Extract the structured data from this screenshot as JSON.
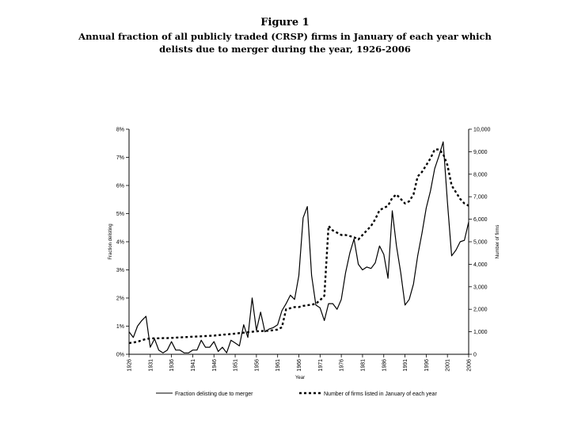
{
  "figure": {
    "label": "Figure 1",
    "caption_line1": "Annual fraction of all publicly traded (CRSP) firms in January of each year which",
    "caption_line2": "delists due to merger during the year, 1926-2006"
  },
  "chart_data": {
    "type": "line",
    "title": "Annual fraction of all publicly traded (CRSP) firms in January of each year which delists due to merger during the year, 1926-2006",
    "xlabel": "Year",
    "ylabel_left": "Fraction delisting",
    "ylabel_right": "Number of firms",
    "xlim": [
      1926,
      2006
    ],
    "ylim_left": [
      0,
      8
    ],
    "ylim_right": [
      0,
      10000
    ],
    "x_ticks": [
      "1926",
      "1931",
      "1936",
      "1941",
      "1946",
      "1951",
      "1956",
      "1961",
      "1966",
      "1971",
      "1976",
      "1981",
      "1986",
      "1991",
      "1996",
      "2001",
      "2006"
    ],
    "y_ticks_left": [
      "0%",
      "1%",
      "2%",
      "3%",
      "4%",
      "5%",
      "6%",
      "7%",
      "8%"
    ],
    "y_ticks_right": [
      "0",
      "1,000",
      "2,000",
      "3,000",
      "4,000",
      "5,000",
      "6,000",
      "7,000",
      "8,000",
      "9,000",
      "10,000"
    ],
    "legend_position": "bottom",
    "series": [
      {
        "name": "Fraction delisting due to merger",
        "axis": "left",
        "style": "solid",
        "x": [
          1926,
          1927,
          1928,
          1929,
          1930,
          1931,
          1932,
          1933,
          1934,
          1935,
          1936,
          1937,
          1938,
          1939,
          1940,
          1941,
          1942,
          1943,
          1944,
          1945,
          1946,
          1947,
          1948,
          1949,
          1950,
          1951,
          1952,
          1953,
          1954,
          1955,
          1956,
          1957,
          1958,
          1959,
          1960,
          1961,
          1962,
          1963,
          1964,
          1965,
          1966,
          1967,
          1968,
          1969,
          1970,
          1971,
          1972,
          1973,
          1974,
          1975,
          1976,
          1977,
          1978,
          1979,
          1980,
          1981,
          1982,
          1983,
          1984,
          1985,
          1986,
          1987,
          1988,
          1989,
          1990,
          1991,
          1992,
          1993,
          1994,
          1995,
          1996,
          1997,
          1998,
          1999,
          2000,
          2001,
          2002,
          2003,
          2004,
          2005,
          2006
        ],
        "values": [
          0.8,
          0.6,
          1.0,
          1.2,
          1.35,
          0.25,
          0.55,
          0.15,
          0.05,
          0.15,
          0.45,
          0.15,
          0.15,
          0.05,
          0.05,
          0.15,
          0.15,
          0.5,
          0.25,
          0.25,
          0.45,
          0.1,
          0.25,
          0.05,
          0.5,
          0.4,
          0.3,
          1.05,
          0.6,
          2.0,
          0.85,
          1.5,
          0.8,
          0.9,
          0.95,
          1.05,
          1.55,
          1.8,
          2.1,
          1.95,
          2.8,
          4.85,
          5.25,
          2.8,
          1.75,
          1.65,
          1.2,
          1.8,
          1.8,
          1.6,
          1.95,
          2.9,
          3.6,
          4.1,
          3.2,
          3.0,
          3.1,
          3.05,
          3.25,
          3.85,
          3.55,
          2.7,
          5.1,
          3.85,
          2.9,
          1.75,
          1.95,
          2.5,
          3.5,
          4.3,
          5.2,
          5.8,
          6.6,
          7.05,
          7.55,
          5.4,
          3.5,
          3.7,
          4.0,
          4.05,
          4.7
        ]
      },
      {
        "name": "Number of firms listed in January of each year",
        "axis": "right",
        "style": "dashed",
        "x": [
          1926,
          1927,
          1928,
          1929,
          1930,
          1931,
          1932,
          1933,
          1934,
          1935,
          1936,
          1937,
          1938,
          1939,
          1940,
          1941,
          1942,
          1943,
          1944,
          1945,
          1946,
          1947,
          1948,
          1949,
          1950,
          1951,
          1952,
          1953,
          1954,
          1955,
          1956,
          1957,
          1958,
          1959,
          1960,
          1961,
          1962,
          1963,
          1964,
          1965,
          1966,
          1967,
          1968,
          1969,
          1970,
          1971,
          1972,
          1973,
          1974,
          1975,
          1976,
          1977,
          1978,
          1979,
          1980,
          1981,
          1982,
          1983,
          1984,
          1985,
          1986,
          1987,
          1988,
          1989,
          1990,
          1991,
          1992,
          1993,
          1994,
          1995,
          1996,
          1997,
          1998,
          1999,
          2000,
          2001,
          2002,
          2003,
          2004,
          2005,
          2006
        ],
        "values": [
          500,
          520,
          560,
          620,
          680,
          700,
          710,
          710,
          720,
          720,
          730,
          740,
          750,
          760,
          770,
          780,
          790,
          800,
          810,
          820,
          830,
          850,
          870,
          880,
          900,
          920,
          940,
          960,
          980,
          1000,
          1020,
          1030,
          1040,
          1050,
          1070,
          1100,
          1200,
          2000,
          2050,
          2100,
          2100,
          2150,
          2180,
          2200,
          2250,
          2400,
          2600,
          5700,
          5500,
          5400,
          5300,
          5300,
          5250,
          5200,
          5100,
          5300,
          5500,
          5700,
          6000,
          6400,
          6500,
          6600,
          6950,
          7100,
          6900,
          6700,
          6800,
          7100,
          7900,
          8100,
          8400,
          8700,
          9100,
          9100,
          8900,
          8400,
          7500,
          7200,
          6900,
          6700,
          6600
        ]
      }
    ]
  }
}
